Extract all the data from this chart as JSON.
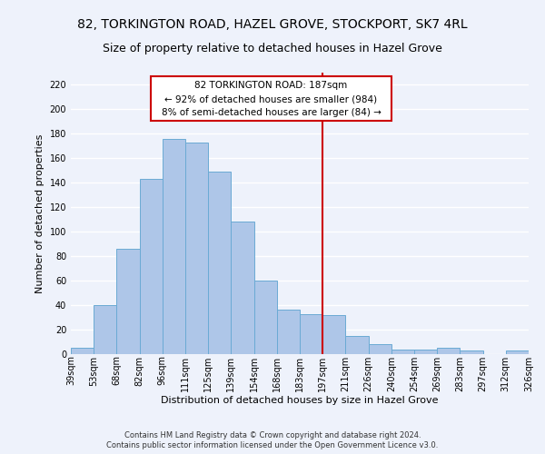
{
  "title1": "82, TORKINGTON ROAD, HAZEL GROVE, STOCKPORT, SK7 4RL",
  "title2": "Size of property relative to detached houses in Hazel Grove",
  "xlabel": "Distribution of detached houses by size in Hazel Grove",
  "ylabel": "Number of detached properties",
  "categories": [
    "39sqm",
    "53sqm",
    "68sqm",
    "82sqm",
    "96sqm",
    "111sqm",
    "125sqm",
    "139sqm",
    "154sqm",
    "168sqm",
    "183sqm",
    "197sqm",
    "211sqm",
    "226sqm",
    "240sqm",
    "254sqm",
    "269sqm",
    "283sqm",
    "297sqm",
    "312sqm",
    "326sqm"
  ],
  "values": [
    5,
    40,
    86,
    143,
    176,
    173,
    149,
    108,
    60,
    36,
    33,
    32,
    15,
    8,
    4,
    4,
    5,
    3,
    0,
    3
  ],
  "bar_color": "#aec6e8",
  "bar_edge_color": "#6aaad4",
  "annotation_line1": "82 TORKINGTON ROAD: 187sqm",
  "annotation_line2": "← 92% of detached houses are smaller (984)",
  "annotation_line3": "8% of semi-detached houses are larger (84) →",
  "annotation_box_color": "#cc0000",
  "footer1": "Contains HM Land Registry data © Crown copyright and database right 2024.",
  "footer2": "Contains public sector information licensed under the Open Government Licence v3.0.",
  "ylim": [
    0,
    230
  ],
  "yticks": [
    0,
    20,
    40,
    60,
    80,
    100,
    120,
    140,
    160,
    180,
    200,
    220
  ],
  "background_color": "#eef2fb",
  "grid_color": "#ffffff",
  "title_fontsize": 10,
  "subtitle_fontsize": 9,
  "axis_fontsize": 8,
  "tick_fontsize": 7
}
